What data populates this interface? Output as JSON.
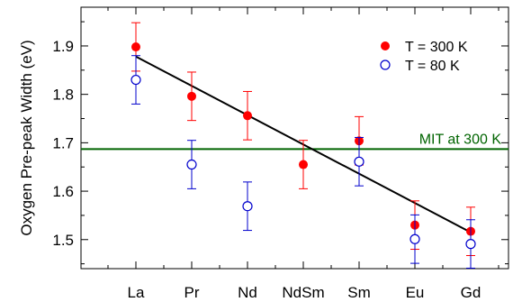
{
  "chart_data": {
    "type": "scatter",
    "title": "",
    "xlabel": "",
    "ylabel": "Oxygen Pre-peak Width (eV)",
    "categories": [
      "La",
      "Pr",
      "Nd",
      "NdSm",
      "Sm",
      "Eu",
      "Gd"
    ],
    "ylim": [
      1.44,
      1.98
    ],
    "yticks": [
      "1.5",
      "1.6",
      "1.7",
      "1.8",
      "1.9"
    ],
    "grid": false,
    "legend_position": "top-right",
    "series": [
      {
        "name": "T = 300 K",
        "marker": "filled-circle",
        "color": "#ff0000",
        "error_color": "#ff0000",
        "values": [
          1.898,
          1.796,
          1.756,
          1.655,
          1.704,
          1.53,
          1.517
        ],
        "errors": [
          0.05,
          0.05,
          0.05,
          0.05,
          0.05,
          0.05,
          0.05
        ]
      },
      {
        "name": "T = 80 K",
        "marker": "open-circle",
        "color": "#0000cc",
        "error_color": "#0000cc",
        "values": [
          1.83,
          1.655,
          1.569,
          null,
          1.661,
          1.501,
          1.491
        ],
        "errors": [
          0.05,
          0.05,
          0.05,
          null,
          0.05,
          0.05,
          0.05
        ]
      }
    ],
    "fit_line": {
      "from": [
        "La",
        1.878
      ],
      "to": [
        "Gd",
        1.515
      ],
      "color": "#000000"
    },
    "reference_line": {
      "label": "MIT at 300 K",
      "value": 1.687,
      "color": "#006400"
    }
  }
}
